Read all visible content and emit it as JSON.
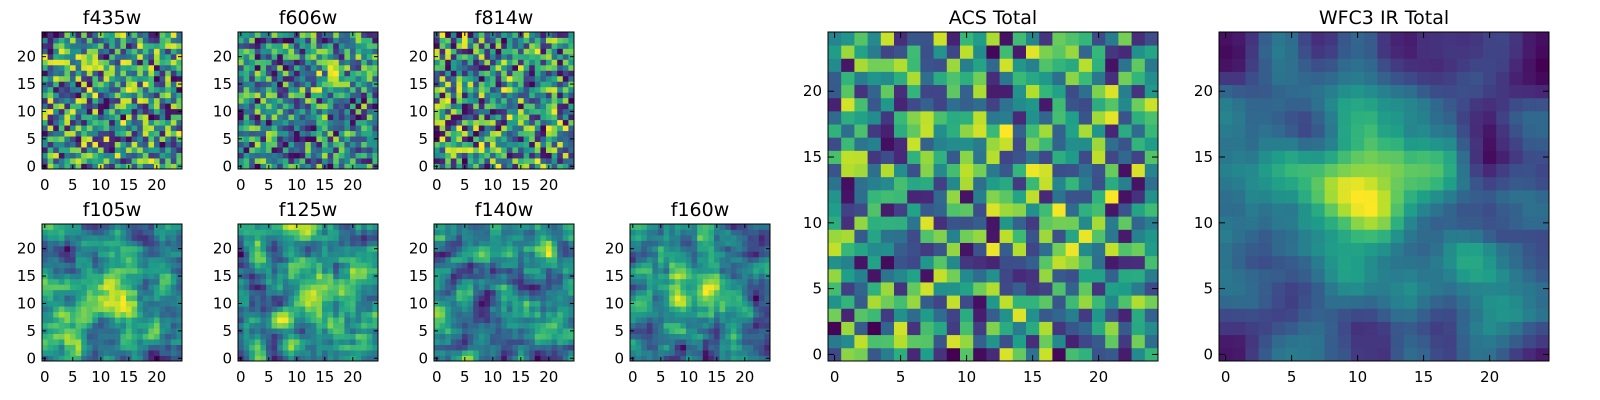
{
  "chart_data": [
    {
      "type": "heatmap",
      "title": "f435w",
      "x_ticks": [
        0,
        5,
        10,
        15,
        20
      ],
      "y_ticks": [
        0,
        5,
        10,
        15,
        20
      ],
      "xlim": [
        -0.5,
        24.5
      ],
      "ylim": [
        -0.5,
        24.5
      ],
      "grid": false,
      "colormap": "viridis",
      "values": []
    },
    {
      "type": "heatmap",
      "title": "f606w",
      "x_ticks": [
        0,
        5,
        10,
        15,
        20
      ],
      "y_ticks": [
        0,
        5,
        10,
        15,
        20
      ],
      "xlim": [
        -0.5,
        24.5
      ],
      "ylim": [
        -0.5,
        24.5
      ],
      "grid": false,
      "colormap": "viridis",
      "values": []
    },
    {
      "type": "heatmap",
      "title": "f814w",
      "x_ticks": [
        0,
        5,
        10,
        15,
        20
      ],
      "y_ticks": [
        0,
        5,
        10,
        15,
        20
      ],
      "xlim": [
        -0.5,
        24.5
      ],
      "ylim": [
        -0.5,
        24.5
      ],
      "grid": false,
      "colormap": "viridis",
      "values": []
    },
    {
      "type": "heatmap",
      "title": "f105w",
      "x_ticks": [
        0,
        5,
        10,
        15,
        20
      ],
      "y_ticks": [
        0,
        5,
        10,
        15,
        20
      ],
      "xlim": [
        -0.5,
        24.5
      ],
      "ylim": [
        -0.5,
        24.5
      ],
      "grid": false,
      "colormap": "viridis",
      "values": []
    },
    {
      "type": "heatmap",
      "title": "f125w",
      "x_ticks": [
        0,
        5,
        10,
        15,
        20
      ],
      "y_ticks": [
        0,
        5,
        10,
        15,
        20
      ],
      "xlim": [
        -0.5,
        24.5
      ],
      "ylim": [
        -0.5,
        24.5
      ],
      "grid": false,
      "colormap": "viridis",
      "values": []
    },
    {
      "type": "heatmap",
      "title": "f140w",
      "x_ticks": [
        0,
        5,
        10,
        15,
        20
      ],
      "y_ticks": [
        0,
        5,
        10,
        15,
        20
      ],
      "xlim": [
        -0.5,
        24.5
      ],
      "ylim": [
        -0.5,
        24.5
      ],
      "grid": false,
      "colormap": "viridis",
      "values": []
    },
    {
      "type": "heatmap",
      "title": "f160w",
      "x_ticks": [
        0,
        5,
        10,
        15,
        20
      ],
      "y_ticks": [
        0,
        5,
        10,
        15,
        20
      ],
      "xlim": [
        -0.5,
        24.5
      ],
      "ylim": [
        -0.5,
        24.5
      ],
      "grid": false,
      "colormap": "viridis",
      "values": []
    },
    {
      "type": "heatmap",
      "title": "ACS Total",
      "x_ticks": [
        0,
        5,
        10,
        15,
        20
      ],
      "y_ticks": [
        0,
        5,
        10,
        15,
        20
      ],
      "xlim": [
        -0.5,
        24.5
      ],
      "ylim": [
        -0.5,
        24.5
      ],
      "grid": false,
      "colormap": "viridis",
      "values": []
    },
    {
      "type": "heatmap",
      "title": "WFC3 IR Total",
      "x_ticks": [
        0,
        5,
        10,
        15,
        20
      ],
      "y_ticks": [
        0,
        5,
        10,
        15,
        20
      ],
      "xlim": [
        -0.5,
        24.5
      ],
      "ylim": [
        -0.5,
        24.5
      ],
      "grid": false,
      "colormap": "viridis",
      "values": []
    }
  ]
}
